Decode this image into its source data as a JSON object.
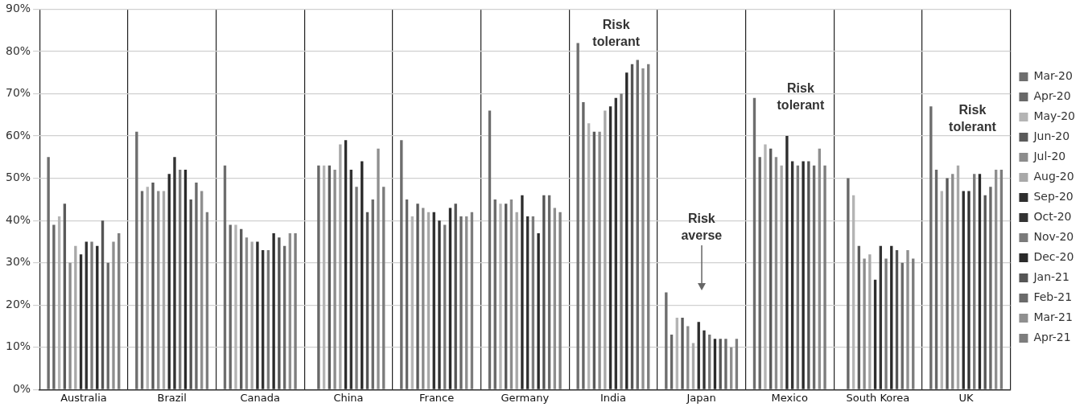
{
  "chart_data": {
    "type": "bar",
    "categories": [
      "Australia",
      "Brazil",
      "Canada",
      "China",
      "France",
      "Germany",
      "India",
      "Japan",
      "Mexico",
      "South Korea",
      "UK"
    ],
    "series": [
      {
        "name": "Mar-20",
        "color": "#6e6e6e",
        "values": [
          55,
          61,
          53,
          null,
          59,
          66,
          82,
          23,
          69,
          null,
          67
        ]
      },
      {
        "name": "Apr-20",
        "color": "#686868",
        "values": [
          39,
          47,
          39,
          53,
          45,
          45,
          68,
          13,
          55,
          50,
          52
        ]
      },
      {
        "name": "May-20",
        "color": "#b4b4b4",
        "values": [
          41,
          48,
          39,
          53,
          41,
          44,
          63,
          17,
          58,
          46,
          47
        ]
      },
      {
        "name": "Jun-20",
        "color": "#5a5a5a",
        "values": [
          44,
          49,
          38,
          53,
          44,
          44,
          61,
          17,
          57,
          34,
          50
        ]
      },
      {
        "name": "Jul-20",
        "color": "#8c8c8c",
        "values": [
          30,
          47,
          36,
          52,
          43,
          45,
          61,
          15,
          55,
          31,
          51
        ]
      },
      {
        "name": "Aug-20",
        "color": "#a8a8a8",
        "values": [
          34,
          47,
          35,
          58,
          42,
          42,
          66,
          11,
          53,
          32,
          53
        ]
      },
      {
        "name": "Sep-20",
        "color": "#2e2e2e",
        "values": [
          32,
          51,
          35,
          59,
          42,
          46,
          67,
          16,
          60,
          26,
          47
        ]
      },
      {
        "name": "Oct-20",
        "color": "#333333",
        "values": [
          35,
          55,
          33,
          52,
          40,
          41,
          69,
          14,
          54,
          34,
          47
        ]
      },
      {
        "name": "Nov-20",
        "color": "#7a7a7a",
        "values": [
          35,
          52,
          33,
          48,
          39,
          41,
          70,
          13,
          53,
          31,
          51
        ]
      },
      {
        "name": "Dec-20",
        "color": "#2a2a2a",
        "values": [
          34,
          52,
          37,
          54,
          43,
          37,
          75,
          12,
          54,
          34,
          51
        ]
      },
      {
        "name": "Jan-21",
        "color": "#555555",
        "values": [
          40,
          45,
          36,
          42,
          44,
          46,
          77,
          12,
          54,
          33,
          46
        ]
      },
      {
        "name": "Feb-21",
        "color": "#6a6a6a",
        "values": [
          30,
          49,
          34,
          45,
          41,
          46,
          78,
          12,
          53,
          30,
          48
        ]
      },
      {
        "name": "Mar-21",
        "color": "#8f8f8f",
        "values": [
          35,
          47,
          37,
          57,
          41,
          43,
          76,
          10,
          57,
          33,
          52
        ]
      },
      {
        "name": "Apr-21",
        "color": "#7d7d7d",
        "values": [
          37,
          42,
          37,
          48,
          42,
          42,
          77,
          12,
          53,
          31,
          52
        ]
      }
    ],
    "ylim": [
      0,
      90
    ],
    "yticks": [
      {
        "value": 0,
        "label": "0%"
      },
      {
        "value": 10,
        "label": "10%"
      },
      {
        "value": 20,
        "label": "20%"
      },
      {
        "value": 30,
        "label": "30%"
      },
      {
        "value": 40,
        "label": "40%"
      },
      {
        "value": 50,
        "label": "50%"
      },
      {
        "value": 60,
        "label": "60%"
      },
      {
        "value": 70,
        "label": "70%"
      },
      {
        "value": 80,
        "label": "80%"
      },
      {
        "value": 90,
        "label": "90%"
      }
    ],
    "grid": true,
    "legend": "right",
    "annotations": [
      "Risk tolerant",
      "Risk averse",
      "Risk tolerant",
      "Risk tolerant"
    ]
  }
}
